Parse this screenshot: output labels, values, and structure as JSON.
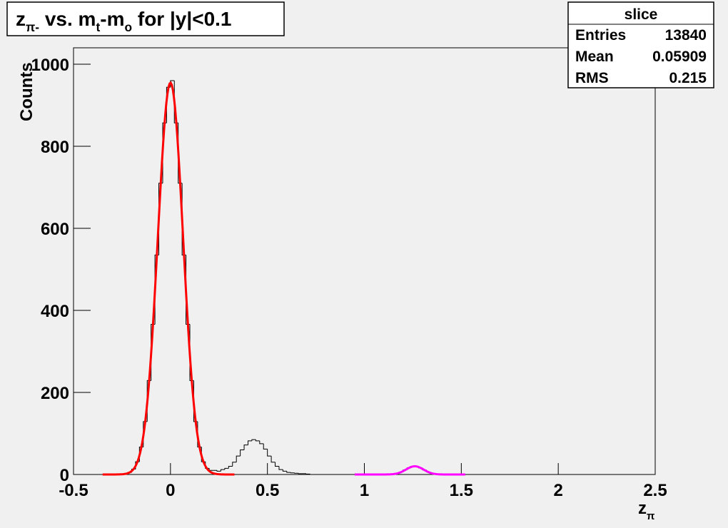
{
  "chart_data": {
    "type": "histogram",
    "title_parts": [
      {
        "text": "z"
      },
      {
        "text": "π-",
        "sub": true
      },
      {
        "text": " vs. m"
      },
      {
        "text": "t",
        "sub": true
      },
      {
        "text": "-m"
      },
      {
        "text": "o",
        "sub": true
      },
      {
        "text": " for |y|<0.1"
      }
    ],
    "xlabel_parts": [
      {
        "text": "z"
      },
      {
        "text": "π",
        "sub": true
      }
    ],
    "ylabel": "Counts",
    "xlim": [
      -0.5,
      2.5
    ],
    "xticks": [
      -0.5,
      0,
      0.5,
      1,
      1.5,
      2,
      2.5
    ],
    "ylim": [
      0,
      1040
    ],
    "yticks": [
      0,
      200,
      400,
      600,
      800,
      1000
    ],
    "color": "#000000",
    "bins": [
      -0.3,
      -0.28,
      -0.26,
      -0.24,
      -0.22,
      -0.2,
      -0.18,
      -0.16,
      -0.14,
      -0.12,
      -0.1,
      -0.08,
      -0.06,
      -0.04,
      -0.02,
      0,
      0.02,
      0.04,
      0.06,
      0.08,
      0.1,
      0.12,
      0.14,
      0.16,
      0.18,
      0.2,
      0.22,
      0.24,
      0.26,
      0.28,
      0.3,
      0.32,
      0.34,
      0.36,
      0.38,
      0.4,
      0.42,
      0.44,
      0.46,
      0.48,
      0.5,
      0.52,
      0.54,
      0.56,
      0.58,
      0.6,
      0.62,
      0.64,
      0.66,
      0.68,
      0.7,
      0.72,
      0.74,
      0.76,
      0.78,
      0.8,
      0.82,
      0.84,
      0.86,
      0.88,
      0.9,
      0.92,
      0.94,
      0.96,
      0.98,
      1,
      1.02,
      1.04,
      1.06,
      1.08,
      1.1,
      1.12,
      1.14,
      1.16,
      1.18,
      1.2,
      1.22,
      1.24,
      1.26,
      1.28,
      1.3,
      1.32,
      1.34,
      1.36,
      1.38,
      1.4
    ],
    "values": [
      0,
      0,
      1,
      2,
      5,
      13,
      31,
      67,
      129,
      229,
      366,
      535,
      710,
      857,
      944,
      960,
      857,
      710,
      535,
      366,
      229,
      129,
      67,
      31,
      15,
      10,
      10,
      8,
      12,
      15,
      20,
      30,
      45,
      60,
      72,
      82,
      85,
      82,
      75,
      62,
      45,
      30,
      20,
      12,
      8,
      5,
      4,
      3,
      2,
      2,
      1,
      0,
      0,
      0,
      0,
      0,
      0,
      0,
      0,
      0,
      0,
      0,
      0,
      0,
      0,
      0,
      0,
      0,
      0,
      0,
      0,
      0,
      1,
      3,
      6,
      11,
      16,
      20,
      20,
      16,
      11,
      6,
      3,
      1,
      0
    ],
    "fits": [
      {
        "color": "#ff0000",
        "range": [
          -0.35,
          0.33
        ],
        "amplitude": 955,
        "mean": 0,
        "sigma": 0.065
      },
      {
        "color": "#ff00ff",
        "range": [
          0.95,
          1.52
        ],
        "amplitude": 20,
        "mean": 1.26,
        "sigma": 0.045
      }
    ],
    "stats": {
      "title": "slice",
      "rows": [
        {
          "label": "Entries",
          "value": 13840
        },
        {
          "label": "Mean",
          "value": 0.05909
        },
        {
          "label": "RMS",
          "value": 0.215
        }
      ]
    }
  }
}
